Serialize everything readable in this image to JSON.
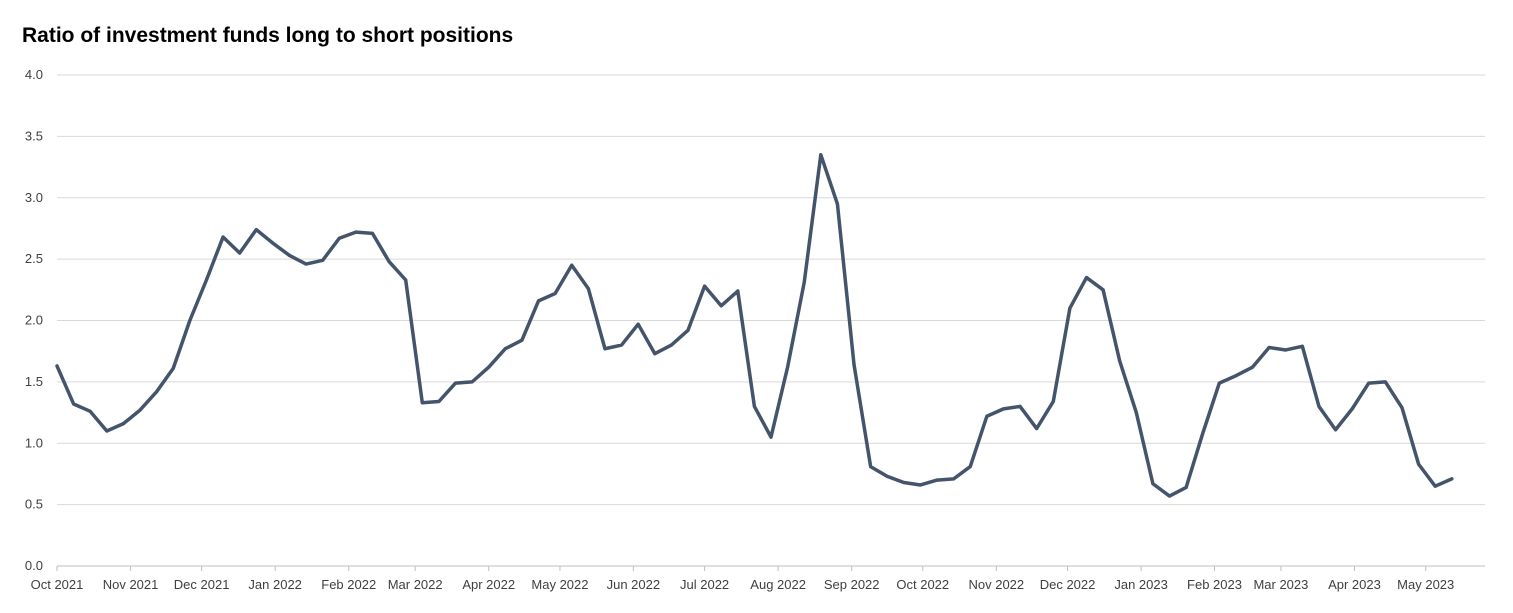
{
  "chart_data": {
    "type": "line",
    "title": "Ratio of investment funds long to short positions",
    "xlabel": "",
    "ylabel": "",
    "ylim": [
      0,
      4
    ],
    "yticks": [
      "0.0",
      "0.5",
      "1.0",
      "1.5",
      "2.0",
      "2.5",
      "3.0",
      "3.5",
      "4.0"
    ],
    "grid": true,
    "legend": "none",
    "line_color": "#44546a",
    "grid_color": "#d9d9d9",
    "xtick_labels": [
      "Oct 2021",
      "Nov 2021",
      "Dec 2021",
      "Jan 2022",
      "Feb 2022",
      "Mar 2022",
      "Apr 2022",
      "May 2022",
      "Jun 2022",
      "Jul 2022",
      "Aug 2022",
      "Sep 2022",
      "Oct 2022",
      "Nov 2022",
      "Dec 2022",
      "Jan 2023",
      "Feb 2023",
      "Mar 2023",
      "Apr 2023",
      "May 2023"
    ],
    "xtick_weeks": [
      0,
      4.43,
      8.71,
      13.14,
      17.57,
      21.57,
      26,
      30.29,
      34.71,
      39,
      43.43,
      47.86,
      52.14,
      56.57,
      60.86,
      65.29,
      69.71,
      73.71,
      78.14,
      82.43
    ],
    "x_range_weeks": [
      0,
      86
    ],
    "series": [
      {
        "values": [
          1.63,
          1.32,
          1.26,
          1.1,
          1.16,
          1.27,
          1.42,
          1.61,
          2.0,
          2.33,
          2.68,
          2.55,
          2.74,
          2.63,
          2.53,
          2.46,
          2.49,
          2.67,
          2.72,
          2.71,
          2.48,
          2.33,
          1.33,
          1.34,
          1.49,
          1.5,
          1.62,
          1.77,
          1.84,
          2.16,
          2.22,
          2.45,
          2.26,
          1.77,
          1.8,
          1.97,
          1.73,
          1.8,
          1.92,
          2.28,
          2.12,
          2.24,
          1.3,
          1.05,
          1.62,
          2.31,
          3.35,
          2.95,
          1.64,
          0.81,
          0.73,
          0.68,
          0.66,
          0.7,
          0.71,
          0.81,
          1.22,
          1.28,
          1.3,
          1.12,
          1.34,
          2.1,
          2.35,
          2.25,
          1.67,
          1.25,
          0.67,
          0.57,
          0.64,
          1.08,
          1.49,
          1.55,
          1.62,
          1.78,
          1.76,
          1.79,
          1.3,
          1.11,
          1.28,
          1.49,
          1.5,
          1.29,
          0.83,
          0.65,
          0.71
        ]
      }
    ]
  }
}
